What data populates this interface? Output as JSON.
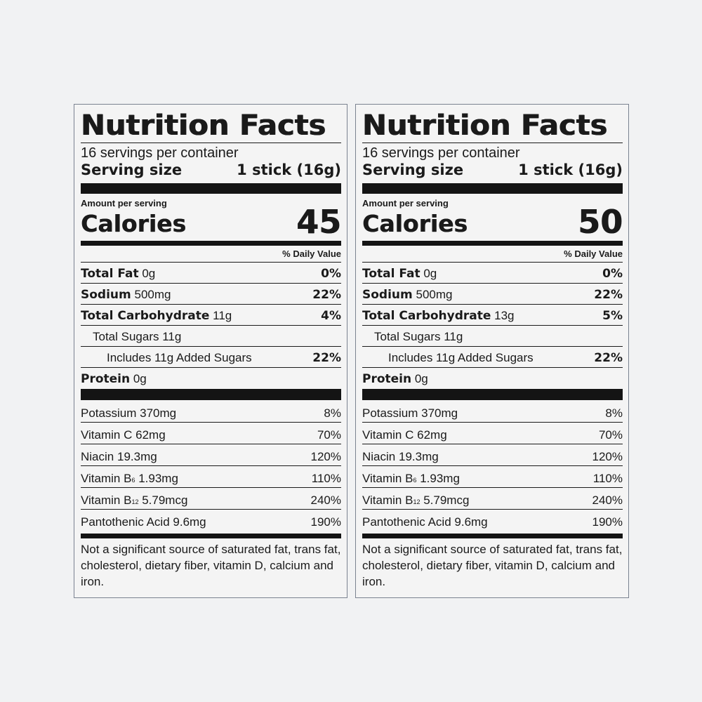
{
  "labels": [
    {
      "title": "Nutrition Facts",
      "servings": "16 servings per container",
      "serving_size_label": "Serving size",
      "serving_size_value": "1 stick (16g)",
      "amount_per_serving": "Amount per serving",
      "calories_label": "Calories",
      "calories_value": "45",
      "dv_header": "% Daily Value",
      "nutrients": [
        {
          "name": "Total Fat",
          "amount": "0g",
          "dv": "0%"
        },
        {
          "name": "Sodium",
          "amount": "500mg",
          "dv": "22%"
        },
        {
          "name": "Total Carbohydrate",
          "amount": "11g",
          "dv": "4%"
        },
        {
          "name": "Total Sugars",
          "amount": "11g",
          "dv": ""
        },
        {
          "name": "Includes 11g Added Sugars",
          "amount": "",
          "dv": "22%"
        },
        {
          "name": "Protein",
          "amount": "0g",
          "dv": ""
        }
      ],
      "vitamins": [
        {
          "name": "Potassium",
          "sub": "",
          "amount": "370mg",
          "dv": "8%"
        },
        {
          "name": "Vitamin C",
          "sub": "",
          "amount": "62mg",
          "dv": "70%"
        },
        {
          "name": "Niacin",
          "sub": "",
          "amount": "19.3mg",
          "dv": "120%"
        },
        {
          "name": "Vitamin B",
          "sub": "6",
          "amount": "1.93mg",
          "dv": "110%"
        },
        {
          "name": "Vitamin B",
          "sub": "12",
          "amount": "5.79mcg",
          "dv": "240%"
        },
        {
          "name": "Pantothenic Acid",
          "sub": "",
          "amount": "9.6mg",
          "dv": "190%"
        }
      ],
      "footnote": "Not a significant source of saturated fat, trans fat, cholesterol, dietary fiber, vitamin D, calcium and iron."
    },
    {
      "title": "Nutrition Facts",
      "servings": "16 servings per container",
      "serving_size_label": "Serving size",
      "serving_size_value": "1 stick (16g)",
      "amount_per_serving": "Amount per serving",
      "calories_label": "Calories",
      "calories_value": "50",
      "dv_header": "% Daily Value",
      "nutrients": [
        {
          "name": "Total Fat",
          "amount": "0g",
          "dv": "0%"
        },
        {
          "name": "Sodium",
          "amount": "500mg",
          "dv": "22%"
        },
        {
          "name": "Total Carbohydrate",
          "amount": "13g",
          "dv": "5%"
        },
        {
          "name": "Total Sugars",
          "amount": "11g",
          "dv": ""
        },
        {
          "name": "Includes 11g Added Sugars",
          "amount": "",
          "dv": "22%"
        },
        {
          "name": "Protein",
          "amount": "0g",
          "dv": ""
        }
      ],
      "vitamins": [
        {
          "name": "Potassium",
          "sub": "",
          "amount": "370mg",
          "dv": "8%"
        },
        {
          "name": "Vitamin C",
          "sub": "",
          "amount": "62mg",
          "dv": "70%"
        },
        {
          "name": "Niacin",
          "sub": "",
          "amount": "19.3mg",
          "dv": "120%"
        },
        {
          "name": "Vitamin B",
          "sub": "6",
          "amount": "1.93mg",
          "dv": "110%"
        },
        {
          "name": "Vitamin B",
          "sub": "12",
          "amount": "5.79mcg",
          "dv": "240%"
        },
        {
          "name": "Pantothenic Acid",
          "sub": "",
          "amount": "9.6mg",
          "dv": "190%"
        }
      ],
      "footnote": "Not a significant source of saturated fat, trans fat, cholesterol, dietary fiber, vitamin D, calcium and iron."
    }
  ]
}
